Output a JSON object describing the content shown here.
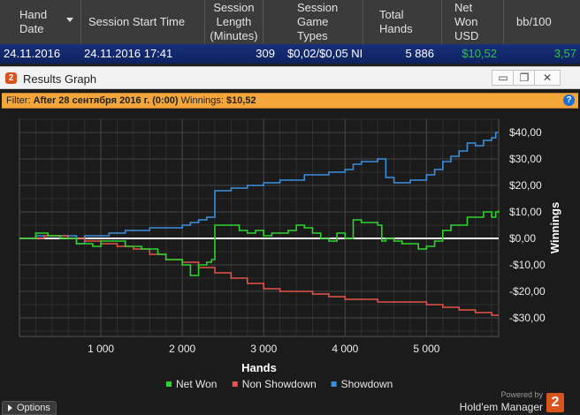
{
  "table": {
    "headers": {
      "hand_date": "Hand\nDate",
      "session_start": "Session Start Time",
      "session_length": "Session\nLength\n(Minutes)",
      "game_types": "Session\nGame\nTypes",
      "total_hands": "Total\nHands",
      "net_won": "Net\nWon\nUSD",
      "bb100": "bb/100"
    },
    "row": {
      "hand_date": "24.11.2016",
      "session_start": "24.11.2016 17:41",
      "session_length": "309",
      "game_types": "$0,02/$0,05 NI",
      "total_hands": "5 886",
      "net_won": "$10,52",
      "bb100": "3,57"
    },
    "colors": {
      "positive": "#2ec24b"
    }
  },
  "window": {
    "title": "Results Graph",
    "app_icon": "2",
    "buttons": {
      "minimize": "▭",
      "restore": "❐",
      "close": "✕"
    }
  },
  "filter": {
    "label": "Filter:",
    "filter_value": "After 28 сентября 2016 г. (0:00)",
    "winnings_label": "Winnings:",
    "winnings_value": "$10,52",
    "help": "?"
  },
  "options_label": "Options",
  "branding": {
    "powered": "Powered by",
    "name": "Hold'em Manager",
    "logo": "2"
  },
  "chart_data": {
    "type": "line",
    "xlabel": "Hands",
    "ylabel": "Winnings",
    "xlim": [
      0,
      5886
    ],
    "ylim": [
      -37,
      45
    ],
    "x_ticks": [
      1000,
      2000,
      3000,
      4000,
      5000
    ],
    "x_tick_labels": [
      "1 000",
      "2 000",
      "3 000",
      "4 000",
      "5 000"
    ],
    "y_ticks": [
      40,
      30,
      20,
      10,
      0,
      -10,
      -20,
      -30
    ],
    "y_tick_labels": [
      "$40,00",
      "$30,00",
      "$20,00",
      "$10,00",
      "$0,00",
      "-$10,00",
      "-$20,00",
      "-$30,00"
    ],
    "grid": true,
    "legend_position": "bottom",
    "series": [
      {
        "name": "Net Won",
        "color": "#2ed32e",
        "x": [
          0,
          200,
          350,
          500,
          700,
          900,
          1000,
          1100,
          1300,
          1500,
          1700,
          1800,
          2000,
          2100,
          2200,
          2300,
          2360,
          2400,
          2500,
          2700,
          2800,
          2900,
          3000,
          3100,
          3300,
          3400,
          3500,
          3600,
          3700,
          3800,
          3900,
          4000,
          4100,
          4200,
          4300,
          4400,
          4450,
          4500,
          4600,
          4700,
          4800,
          4900,
          5000,
          5100,
          5200,
          5300,
          5500,
          5700,
          5800,
          5850,
          5886
        ],
        "y": [
          0,
          2,
          1,
          0,
          -2,
          -3,
          -1,
          -1,
          -3,
          -4,
          -6,
          -8,
          -10,
          -14,
          -10,
          -9,
          -8,
          5,
          5,
          3,
          2,
          3,
          1,
          2,
          3,
          5,
          4,
          2,
          0,
          -1,
          2,
          0,
          7,
          6,
          6,
          5,
          -1,
          0,
          -1,
          -2,
          -2,
          -4,
          -3,
          -1,
          3,
          5,
          8,
          10,
          8,
          10,
          10.52
        ]
      },
      {
        "name": "Non Showdown",
        "color": "#e5534b",
        "x": [
          0,
          300,
          600,
          800,
          1000,
          1200,
          1400,
          1600,
          1800,
          2000,
          2200,
          2400,
          2600,
          2800,
          3000,
          3200,
          3400,
          3600,
          3800,
          4000,
          4200,
          4400,
          4600,
          4800,
          5000,
          5200,
          5400,
          5600,
          5800,
          5886
        ],
        "y": [
          0,
          1,
          0,
          -1,
          -2,
          -3,
          -4,
          -6,
          -8,
          -9,
          -11,
          -13,
          -15,
          -17,
          -19,
          -20,
          -20,
          -21,
          -22,
          -23,
          -23,
          -24,
          -24,
          -24,
          -25,
          -26,
          -27,
          -28,
          -29,
          -29
        ]
      },
      {
        "name": "Showdown",
        "color": "#3c8fe0",
        "x": [
          0,
          200,
          400,
          600,
          700,
          800,
          900,
          1000,
          1100,
          1300,
          1500,
          1600,
          1700,
          1800,
          1900,
          2000,
          2100,
          2200,
          2300,
          2380,
          2400,
          2600,
          2800,
          3000,
          3200,
          3500,
          3800,
          4000,
          4100,
          4200,
          4400,
          4500,
          4600,
          4800,
          5000,
          5100,
          5200,
          5300,
          5400,
          5500,
          5600,
          5700,
          5800,
          5850,
          5886
        ],
        "y": [
          0,
          1,
          1,
          1,
          -2,
          1,
          1,
          1,
          2,
          3,
          3,
          4,
          4,
          4,
          4,
          5,
          6,
          7,
          8,
          8,
          18,
          19,
          20,
          21,
          22,
          24,
          25,
          26,
          28,
          29,
          30,
          23,
          21,
          22,
          24,
          26,
          29,
          31,
          33,
          36,
          35,
          37,
          38,
          40,
          40
        ]
      }
    ]
  }
}
